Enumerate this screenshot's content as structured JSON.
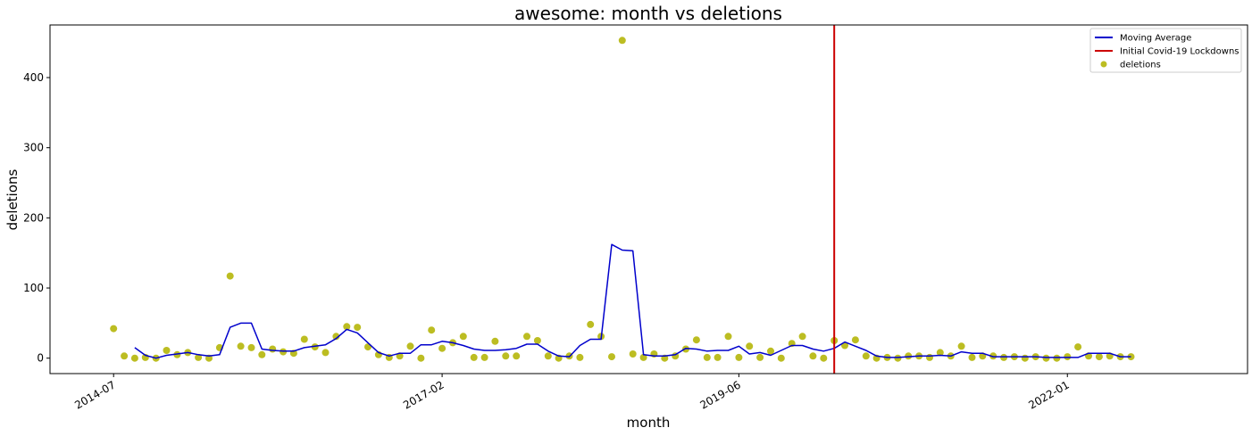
{
  "chart_data": {
    "type": "line",
    "title": "awesome: month vs deletions",
    "xlabel": "month",
    "ylabel": "deletions",
    "x_start": "2014-07",
    "x_frequency": "monthly",
    "xlim": [
      "2014-01",
      "2023-06"
    ],
    "ylim": [
      -22,
      475
    ],
    "yticks": [
      0,
      100,
      200,
      300,
      400
    ],
    "xticks": [
      "2014-07",
      "2017-02",
      "2019-06",
      "2022-01"
    ],
    "grid": false,
    "legend_position": "top-right",
    "legend": [
      "Moving Average",
      "Initial Covid-19 Lockdowns",
      "deletions"
    ],
    "vertical_line": {
      "name": "Initial Covid-19 Lockdowns",
      "x": "2020-03",
      "color": "#cc0000"
    },
    "series": [
      {
        "name": "deletions",
        "kind": "scatter",
        "color": "#bcbd22",
        "values": [
          42,
          3,
          0,
          1,
          0,
          11,
          5,
          8,
          1,
          0,
          15,
          117,
          17,
          15,
          5,
          13,
          9,
          7,
          27,
          16,
          8,
          31,
          45,
          44,
          16,
          5,
          1,
          3,
          17,
          0,
          40,
          14,
          22,
          31,
          1,
          1,
          24,
          3,
          3,
          31,
          25,
          3,
          0,
          3,
          1,
          48,
          31,
          2,
          453,
          6,
          1,
          6,
          0,
          3,
          13,
          26,
          1,
          1,
          31,
          1,
          17,
          1,
          10,
          0,
          21,
          31,
          3,
          0,
          25,
          18,
          26,
          3,
          0,
          1,
          0,
          3,
          3,
          1,
          8,
          3,
          17,
          1,
          3,
          3,
          1,
          2,
          0,
          2,
          0,
          0,
          2,
          16,
          3,
          2,
          3,
          2,
          2
        ]
      },
      {
        "name": "Moving Average",
        "kind": "line",
        "color": "#0000cc",
        "start_index": 2,
        "values": [
          15,
          4,
          0,
          4,
          6,
          8,
          5,
          3,
          5,
          44,
          50,
          50,
          13,
          11,
          10,
          10,
          15,
          17,
          19,
          28,
          41,
          36,
          22,
          8,
          3,
          7,
          7,
          19,
          19,
          24,
          22,
          18,
          13,
          11,
          11,
          12,
          14,
          20,
          20,
          10,
          3,
          2,
          18,
          27,
          27,
          162,
          154,
          153,
          5,
          3,
          3,
          5,
          14,
          13,
          10,
          11,
          11,
          17,
          6,
          8,
          4,
          11,
          18,
          18,
          13,
          10,
          14,
          23,
          17,
          11,
          3,
          1,
          1,
          2,
          3,
          3,
          4,
          3,
          9,
          7,
          7,
          2,
          2,
          2,
          2,
          2,
          1,
          1,
          1,
          1,
          7,
          7,
          7,
          2,
          2
        ]
      }
    ]
  }
}
